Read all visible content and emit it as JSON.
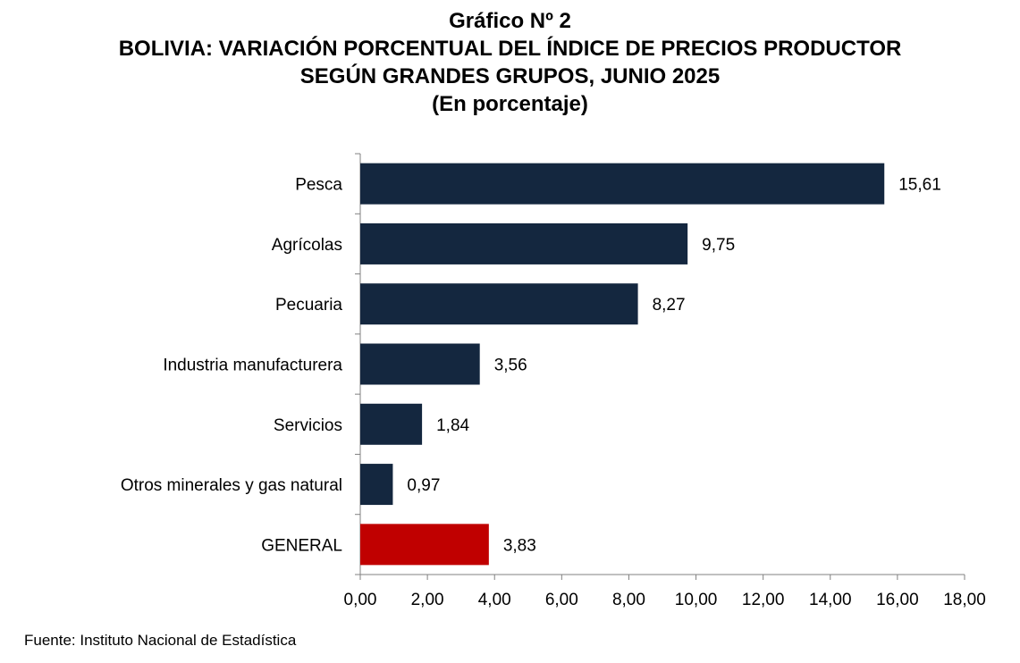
{
  "header": {
    "chart_number": "Gráfico Nº 2",
    "title_line1": "BOLIVIA: VARIACIÓN PORCENTUAL DEL ÍNDICE DE PRECIOS PRODUCTOR",
    "title_line2": "SEGÚN GRANDES GRUPOS, JUNIO 2025",
    "subtitle": "(En porcentaje)"
  },
  "footer": {
    "source": "Fuente: Instituto Nacional de Estadística"
  },
  "chart_data": {
    "type": "bar",
    "orientation": "horizontal",
    "title": "BOLIVIA: VARIACIÓN PORCENTUAL DEL ÍNDICE DE PRECIOS PRODUCTOR SEGÚN GRANDES GRUPOS, JUNIO 2025",
    "subtitle": "(En porcentaje)",
    "categories": [
      "Pesca",
      "Agrícolas",
      "Pecuaria",
      "Industria manufacturera",
      "Servicios",
      "Otros minerales y gas natural",
      "GENERAL"
    ],
    "values": [
      15.61,
      9.75,
      8.27,
      3.56,
      1.84,
      0.97,
      3.83
    ],
    "value_labels": [
      "15,61",
      "9,75",
      "8,27",
      "3,56",
      "1,84",
      "0,97",
      "3,83"
    ],
    "bar_colors": [
      "#14273f",
      "#14273f",
      "#14273f",
      "#14273f",
      "#14273f",
      "#14273f",
      "#c00000"
    ],
    "xlim": [
      0,
      18
    ],
    "xticks": [
      0,
      2,
      4,
      6,
      8,
      10,
      12,
      14,
      16,
      18
    ],
    "xtick_labels": [
      "0,00",
      "2,00",
      "4,00",
      "6,00",
      "8,00",
      "10,00",
      "12,00",
      "14,00",
      "16,00",
      "18,00"
    ],
    "xlabel": "",
    "ylabel": "",
    "grid": false,
    "legend": "none"
  }
}
